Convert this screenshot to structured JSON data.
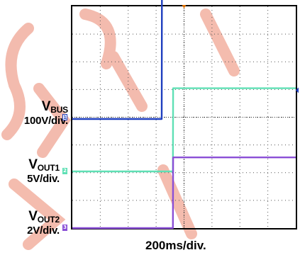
{
  "chart_data": {
    "type": "line",
    "title": "",
    "xlabel": "200ms/div.",
    "time_per_div_ms": 200,
    "x_divisions": 8,
    "y_divisions": 8,
    "grid": true,
    "x_ms": [
      0,
      640,
      642,
      720,
      722,
      1600
    ],
    "series": [
      {
        "name": "VBUS",
        "scale": "100V/div.",
        "color": "#1f3fbf",
        "marker_label": "1",
        "values_div": [
          -0.05,
          -0.05,
          5.95,
          5.95,
          5.95,
          5.9
        ]
      },
      {
        "name": "VOUT1",
        "scale": "5V/div.",
        "color": "#5fe0b5",
        "marker_label": "2",
        "values_div": [
          0,
          0,
          0,
          0,
          3.0,
          3.0
        ]
      },
      {
        "name": "VOUT2",
        "scale": "2V/div.",
        "color": "#8a4fd6",
        "marker_label": "3",
        "values_div": [
          0,
          0,
          0,
          0,
          2.55,
          2.55
        ]
      }
    ]
  },
  "labels": {
    "vbus_main": "V",
    "vbus_sub": "BUS",
    "vbus_scale": "100V/div.",
    "vout1_main": "V",
    "vout1_sub": "OUT1",
    "vout1_scale": "5V/div.",
    "vout2_main": "V",
    "vout2_sub": "OUT2",
    "vout2_scale": "2V/div.",
    "time_scale": "200ms/div."
  }
}
